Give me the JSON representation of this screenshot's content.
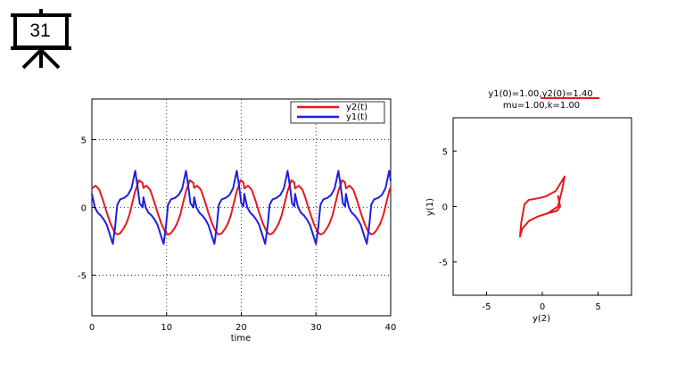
{
  "slide": {
    "number": "31",
    "icon": "presentation-board-icon"
  },
  "chart_data": [
    {
      "type": "line",
      "title": "",
      "xlabel": "time",
      "ylabel": "",
      "xlim": [
        0,
        40
      ],
      "ylim": [
        -8,
        8
      ],
      "xticks": [
        "0",
        "10",
        "20",
        "30",
        "40"
      ],
      "yticks": [
        "-5",
        "0",
        "5"
      ],
      "grid": "dotted",
      "legend_position": "top-right",
      "series": [
        {
          "name": "y2(t)",
          "color": "#e8181b",
          "x": [
            0,
            0.5,
            1.0,
            1.5,
            2.0,
            2.5,
            3.0,
            3.4,
            3.8,
            4.2,
            4.6,
            5.0,
            5.4,
            5.8,
            6.3,
            6.8
          ],
          "y": [
            1.4,
            1.6,
            1.3,
            0.5,
            -0.4,
            -1.2,
            -1.8,
            -2.0,
            -1.9,
            -1.6,
            -1.2,
            -0.6,
            0.3,
            1.2,
            2.0,
            1.8
          ]
        },
        {
          "name": "y1(t)",
          "color": "#1f1fe0",
          "x": [
            0,
            0.4,
            0.8,
            1.2,
            1.6,
            2.0,
            2.4,
            2.8,
            3.1,
            3.4,
            3.8,
            4.3,
            4.8,
            5.3,
            5.8,
            6.1,
            6.4,
            6.8
          ],
          "y": [
            1.0,
            0.0,
            -0.4,
            -0.6,
            -0.9,
            -1.3,
            -2.0,
            -2.7,
            -1.5,
            0.2,
            0.6,
            0.7,
            0.9,
            1.4,
            2.7,
            1.6,
            0.3,
            0.0
          ]
        }
      ]
    },
    {
      "type": "line",
      "title": "y1(0)=1.00,y2(0)=1.40",
      "subtitle": "mu=1.00,k=1.00",
      "xlabel": "y(2)",
      "ylabel": "y(1)",
      "xlim": [
        -8,
        8
      ],
      "ylim": [
        -8,
        8
      ],
      "xticks": [
        "-5",
        "0",
        "5"
      ],
      "yticks": [
        "-5",
        "0",
        "5"
      ],
      "grid": "off",
      "series": [
        {
          "color": "#e8181b",
          "x": [
            1.4,
            1.6,
            1.3,
            0.5,
            -0.4,
            -1.2,
            -1.8,
            -2.0,
            -1.9,
            -1.6,
            -1.2,
            -0.6,
            0.3,
            1.2,
            2.0,
            1.8,
            1.4,
            0.5,
            -0.4,
            -1.2,
            -1.8,
            -2.0
          ],
          "y": [
            1.0,
            0.0,
            -0.4,
            -0.6,
            -0.9,
            -1.3,
            -2.0,
            -2.7,
            -1.5,
            0.2,
            0.6,
            0.7,
            0.9,
            1.4,
            2.7,
            1.6,
            0.0,
            -0.6,
            -0.9,
            -1.3,
            -2.0,
            -2.7
          ]
        }
      ]
    }
  ]
}
